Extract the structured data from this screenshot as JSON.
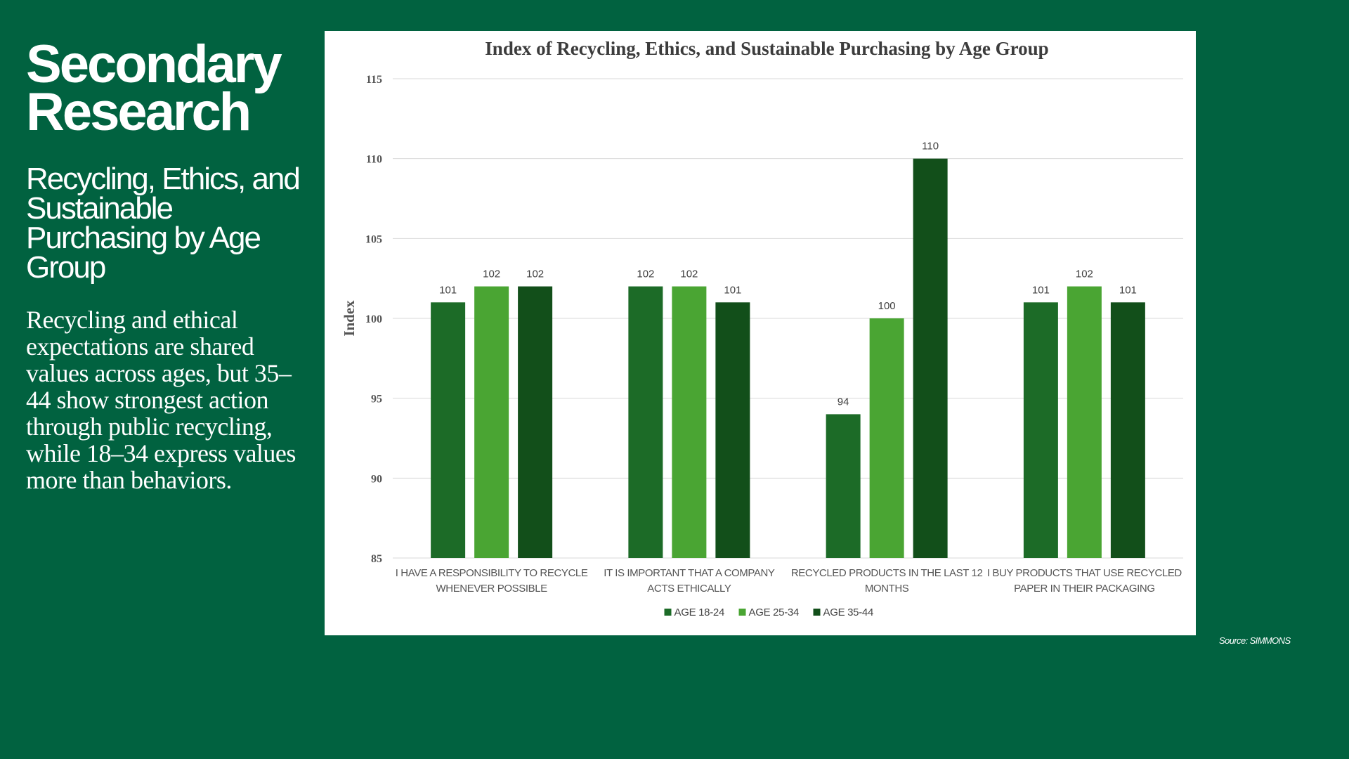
{
  "left": {
    "title_line1": "Secondary",
    "title_line2": "Research",
    "subtitle": "Recycling, Ethics, and Sustainable Purchasing by Age Group",
    "body": "Recycling and ethical expectations are shared values across ages, but 35–44 show strongest action through public recycling, while 18–34 express values more than behaviors."
  },
  "source": "Source: SIMMONS",
  "colors": {
    "background": "#016240",
    "series": [
      "#1c6b27",
      "#4aa533",
      "#124f1a"
    ]
  },
  "chart_data": {
    "type": "bar",
    "title": "Index of Recycling, Ethics, and Sustainable Purchasing by Age Group",
    "xlabel": "",
    "ylabel": "Index",
    "ylim": [
      85,
      115
    ],
    "yticks": [
      85,
      90,
      95,
      100,
      105,
      110,
      115
    ],
    "grid": true,
    "legend": "bottom",
    "categories": [
      [
        "I HAVE A RESPONSIBILITY TO RECYCLE",
        "WHENEVER POSSIBLE"
      ],
      [
        "IT IS IMPORTANT THAT A COMPANY",
        "ACTS ETHICALLY"
      ],
      [
        "RECYCLED PRODUCTS IN THE LAST 12",
        "MONTHS"
      ],
      [
        "I BUY PRODUCTS THAT USE RECYCLED",
        "PAPER IN THEIR PACKAGING"
      ]
    ],
    "series": [
      {
        "name": "AGE 18-24",
        "values": [
          101,
          102,
          94,
          101
        ]
      },
      {
        "name": "AGE 25-34",
        "values": [
          102,
          102,
          100,
          102
        ]
      },
      {
        "name": "AGE 35-44",
        "values": [
          102,
          101,
          110,
          101
        ]
      }
    ]
  }
}
